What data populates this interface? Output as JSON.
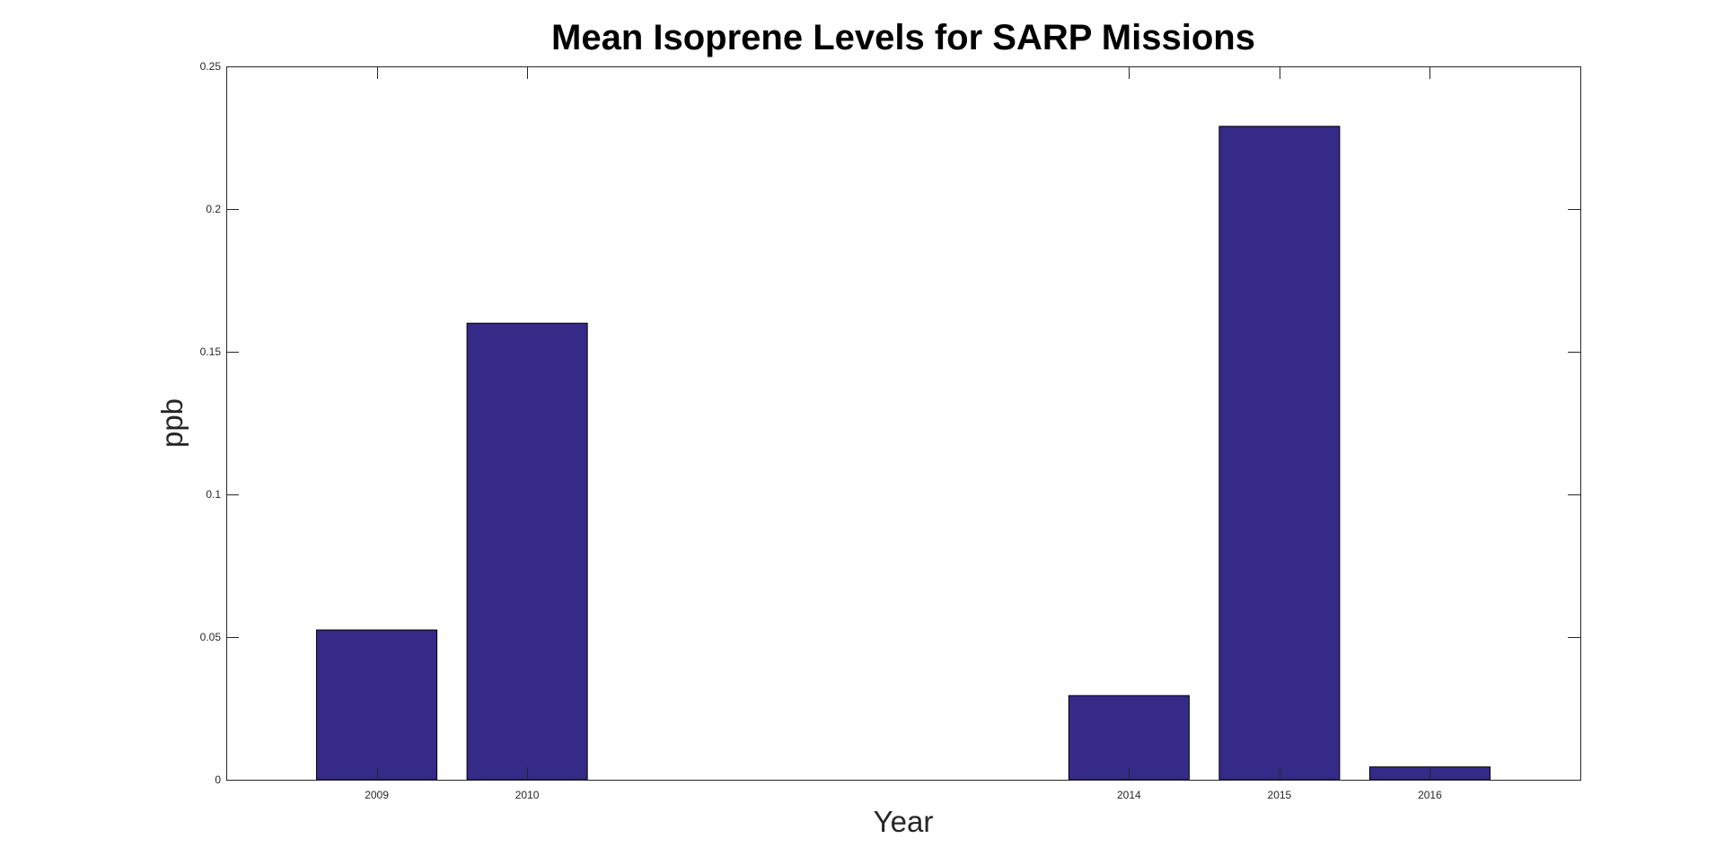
{
  "chart_data": {
    "type": "bar",
    "title": "Mean Isoprene Levels for SARP Missions",
    "xlabel": "Year",
    "ylabel": "ppb",
    "categories": [
      "2009",
      "2010",
      "2014",
      "2015",
      "2016"
    ],
    "x": [
      2009,
      2010,
      2014,
      2015,
      2016
    ],
    "values": [
      0.0525,
      0.16,
      0.0295,
      0.229,
      0.0045
    ],
    "xlim": [
      2008,
      2017
    ],
    "ylim": [
      0,
      0.25
    ],
    "yticks": [
      0,
      0.05,
      0.1,
      0.15,
      0.2,
      0.25
    ],
    "ytick_labels": [
      "0",
      "0.05",
      "0.1",
      "0.15",
      "0.2",
      "0.25"
    ],
    "bar_color": "#352a87",
    "grid": false,
    "legend": "none"
  }
}
